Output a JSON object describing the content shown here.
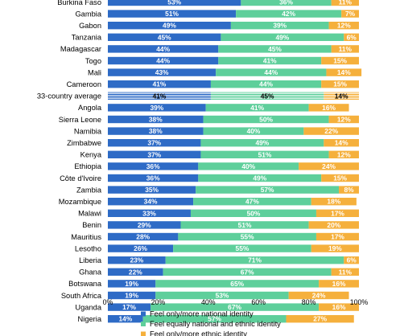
{
  "chart_data": {
    "type": "bar",
    "orientation": "horizontal",
    "stacked": true,
    "xlim": [
      0,
      100
    ],
    "xticks": [
      "0%",
      "20%",
      "40%",
      "60%",
      "80%",
      "100%"
    ],
    "grid": false,
    "legend_position": "bottom",
    "categories": [
      "Burkina Faso",
      "Gambia",
      "Gabon",
      "Tanzania",
      "Madagascar",
      "Togo",
      "Mali",
      "Cameroon",
      "33-country average",
      "Angola",
      "Sierra Leone",
      "Namibia",
      "Zimbabwe",
      "Kenya",
      "Ethiopia",
      "Côte d'Ivoire",
      "Zambia",
      "Mozambique",
      "Malawi",
      "Benin",
      "Mauritius",
      "Lesotho",
      "Liberia",
      "Ghana",
      "Botswana",
      "South Africa",
      "Uganda",
      "Nigeria"
    ],
    "highlight_category": "33-country average",
    "series": [
      {
        "name": "Feel only/more national identity",
        "color": "#2e6bc6",
        "values": [
          53,
          51,
          49,
          45,
          44,
          44,
          43,
          41,
          41,
          39,
          38,
          38,
          37,
          37,
          36,
          36,
          35,
          34,
          33,
          29,
          28,
          26,
          23,
          22,
          19,
          19,
          17,
          14
        ]
      },
      {
        "name": "Feel equally national and ethnic identity",
        "color": "#5ecf9b",
        "values": [
          36,
          42,
          39,
          49,
          45,
          41,
          44,
          44,
          45,
          41,
          50,
          40,
          49,
          51,
          40,
          49,
          57,
          47,
          50,
          51,
          55,
          55,
          71,
          67,
          65,
          53,
          67,
          57
        ]
      },
      {
        "name": "Feel only/more ethnic identity",
        "color": "#f5b03c",
        "values": [
          11,
          7,
          12,
          6,
          11,
          15,
          14,
          15,
          14,
          16,
          12,
          22,
          14,
          12,
          24,
          15,
          8,
          18,
          17,
          20,
          17,
          19,
          6,
          11,
          16,
          24,
          16,
          27
        ]
      }
    ]
  }
}
